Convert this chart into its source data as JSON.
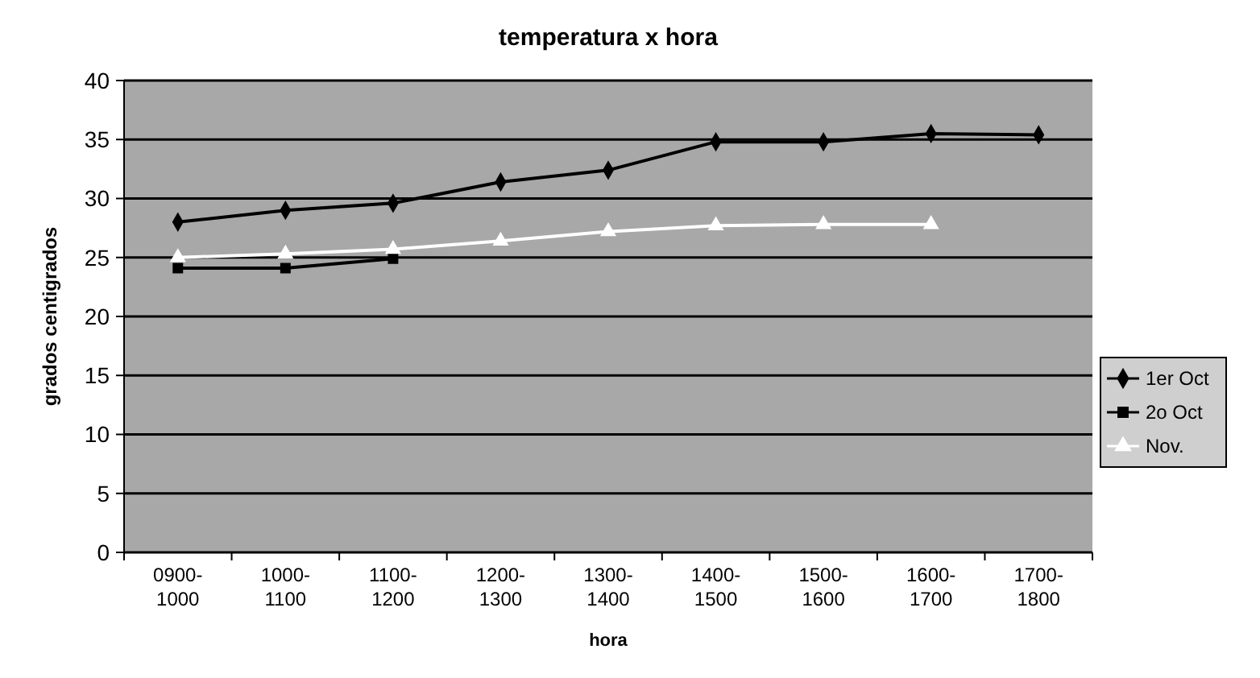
{
  "chart_data": {
    "type": "line",
    "title": "temperatura x hora",
    "xlabel": "hora",
    "ylabel": "grados centigrados",
    "categories": [
      "0900-\n1000",
      "1000-\n1100",
      "1100-\n1200",
      "1200-\n1300",
      "1300-\n1400",
      "1400-\n1500",
      "1500-\n1600",
      "1600-\n1700",
      "1700-\n1800"
    ],
    "series": [
      {
        "name": "1er Oct",
        "color": "#000000",
        "marker": "diamond",
        "values": [
          28.0,
          29.0,
          29.6,
          31.4,
          32.4,
          34.8,
          34.8,
          35.5,
          35.4
        ]
      },
      {
        "name": "2o Oct",
        "color": "#000000",
        "marker": "square",
        "values": [
          24.1,
          24.1,
          24.9,
          null,
          null,
          null,
          null,
          null,
          null
        ]
      },
      {
        "name": "Nov.",
        "color": "#ffffff",
        "marker": "triangle",
        "values": [
          25.0,
          25.3,
          25.7,
          26.4,
          27.2,
          27.7,
          27.8,
          27.8,
          null
        ]
      }
    ],
    "ylim": [
      0,
      40
    ],
    "yticks": [
      0,
      5,
      10,
      15,
      20,
      25,
      30,
      35,
      40
    ],
    "grid": "y",
    "legend": "right",
    "line_style": "solid"
  }
}
